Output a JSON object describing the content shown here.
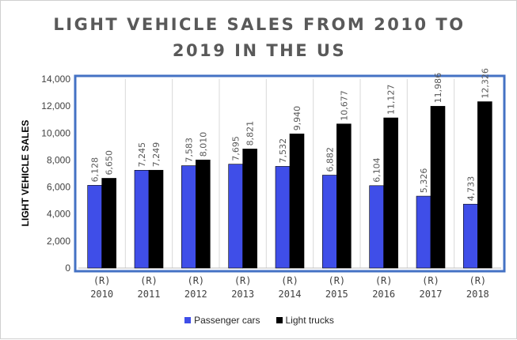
{
  "chart_data": {
    "type": "bar",
    "title_line1": "LIGHT VEHICLE SALES FROM 2010 TO",
    "title_line2": "2019 IN THE US",
    "ylabel": "LIGHT VEHICLE SALES",
    "xlabel": "",
    "ylim": [
      0,
      14000
    ],
    "ytick_step": 2000,
    "grid": "vertical-category-separators",
    "legend_position": "bottom",
    "categories": [
      "(R)\n2010",
      "(R)\n2011",
      "(R)\n2012",
      "(R)\n2013",
      "(R)\n2014",
      "(R)\n2015",
      "(R)\n2016",
      "(R)\n2017",
      "(R)\n2018"
    ],
    "series": [
      {
        "name": "Passenger cars",
        "color": "#3f4ee8",
        "values": [
          6128,
          7245,
          7583,
          7695,
          7532,
          6882,
          6104,
          5326,
          4733
        ]
      },
      {
        "name": "Light trucks",
        "color": "#000000",
        "values": [
          6650,
          7249,
          8010,
          8821,
          9940,
          10677,
          11127,
          11986,
          12326
        ]
      }
    ],
    "plot_border_color": "#4472c4"
  }
}
